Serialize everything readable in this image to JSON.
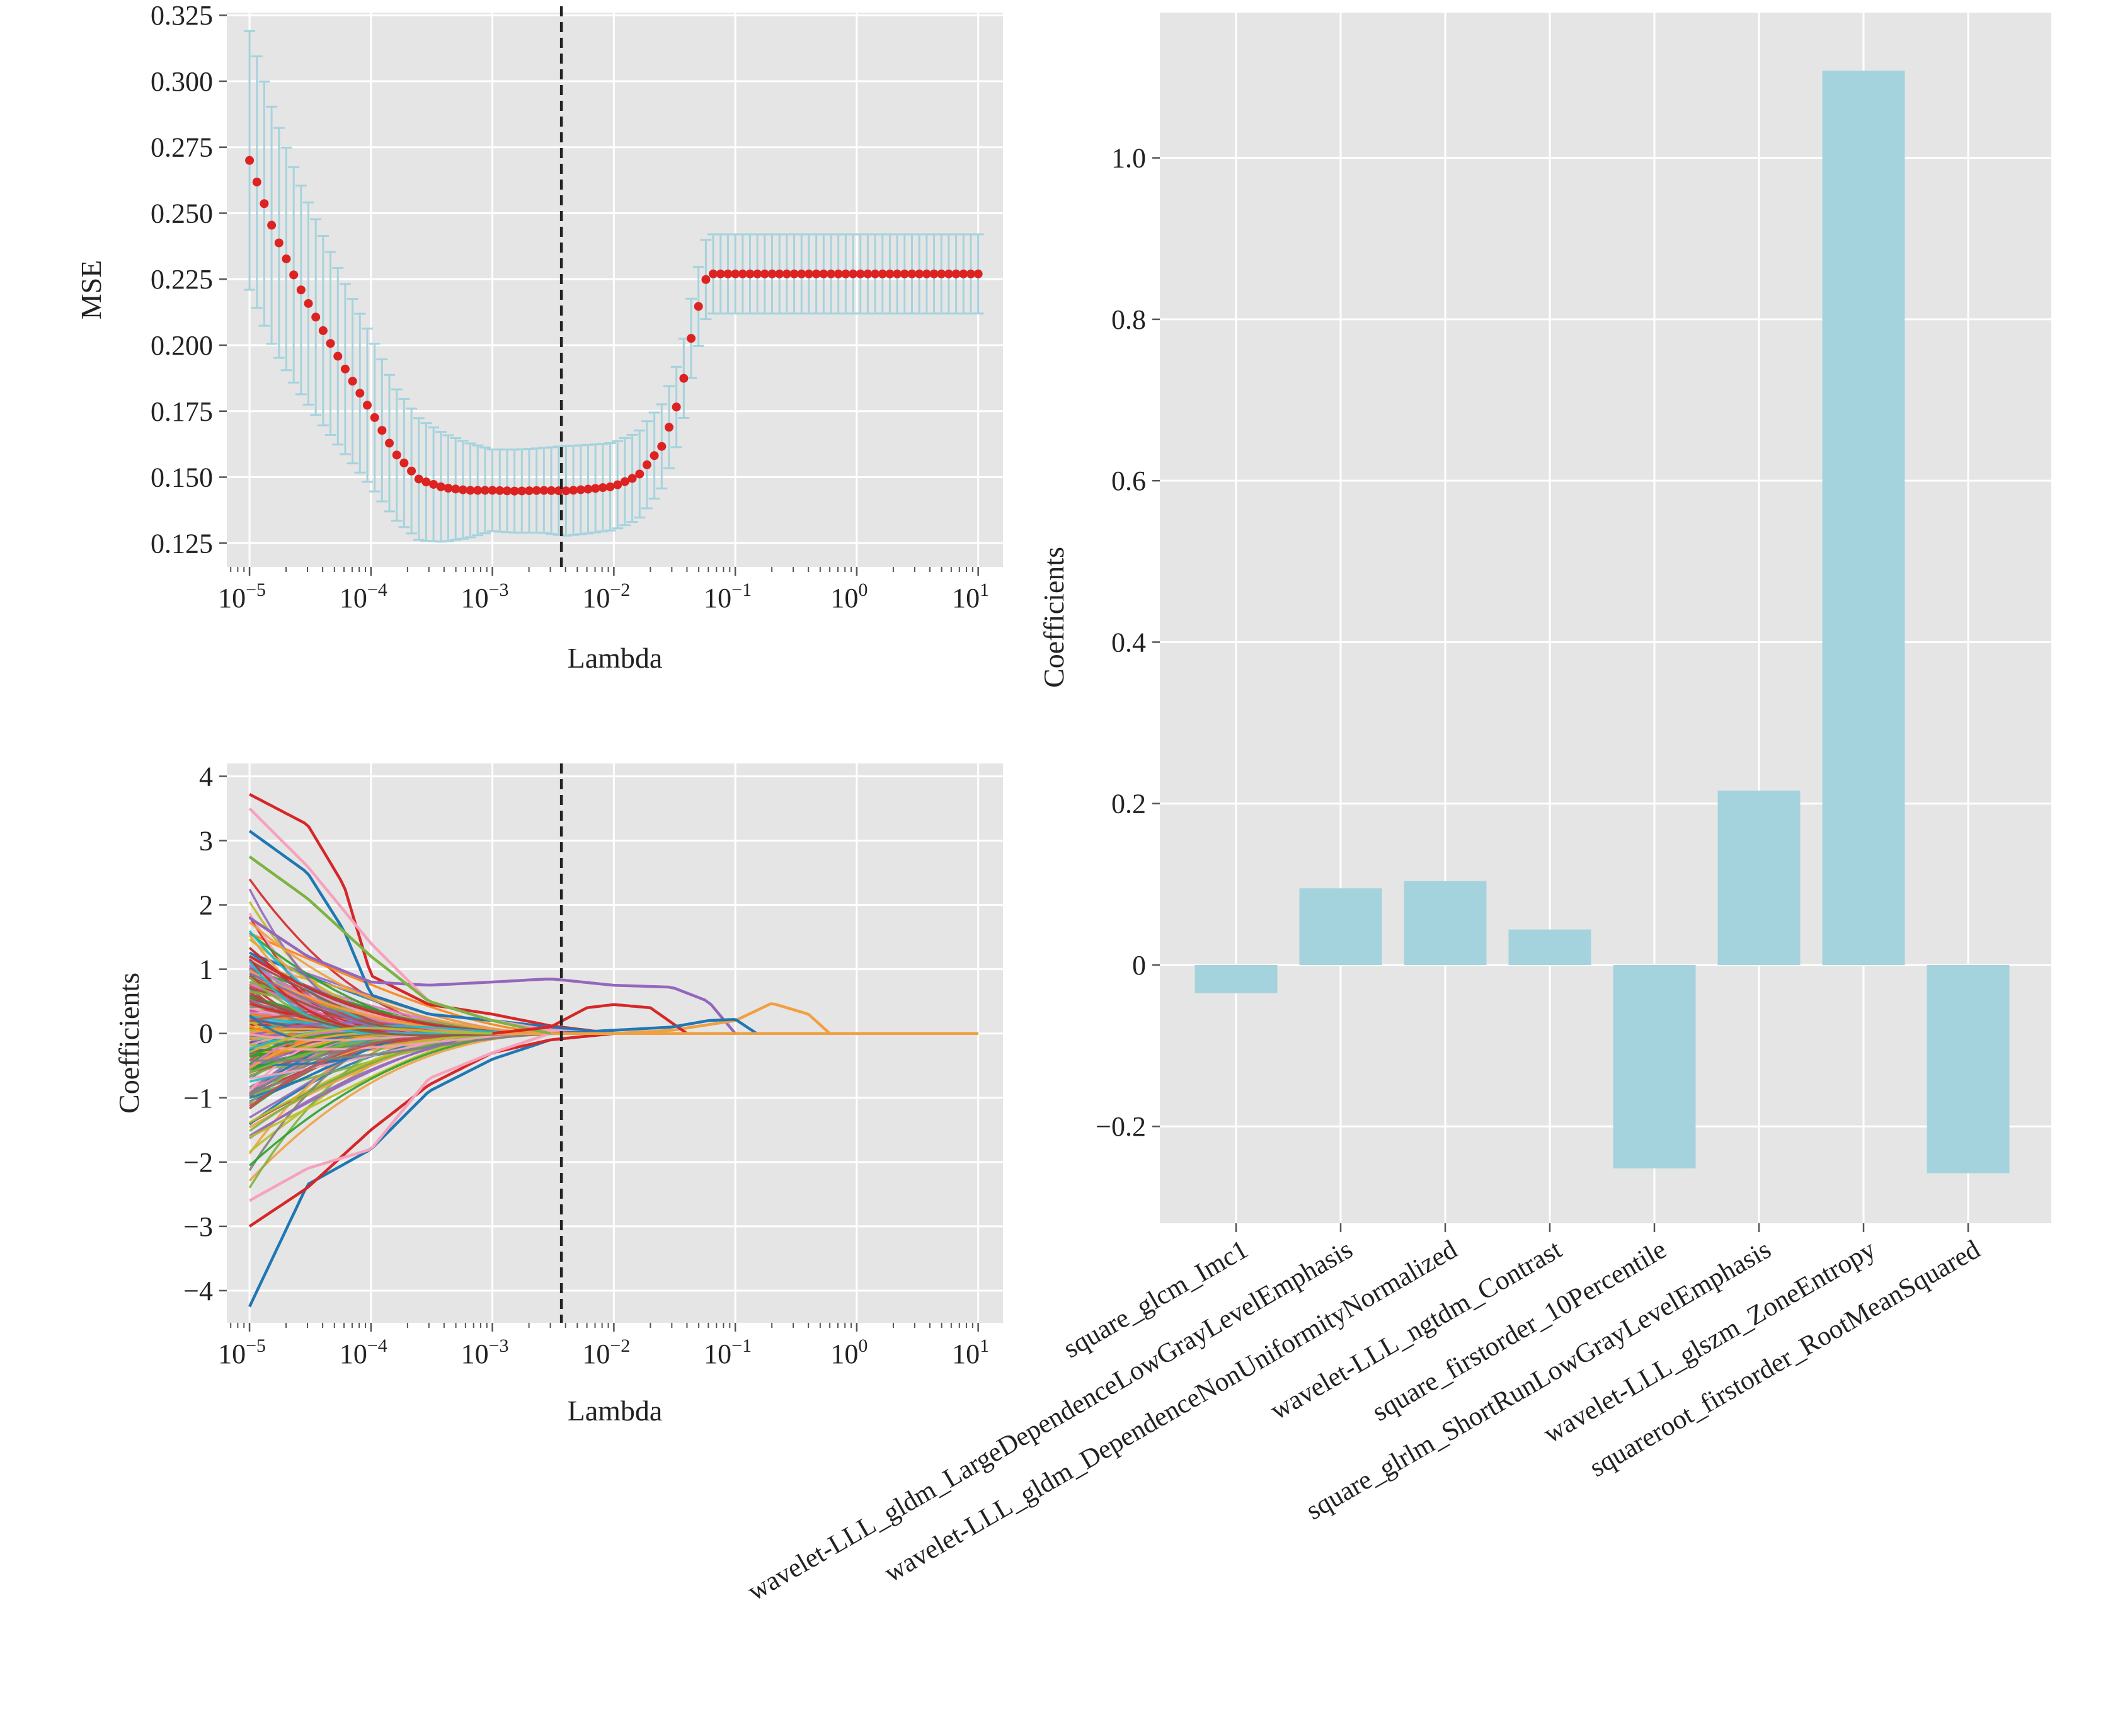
{
  "chart_data": [
    {
      "panel": "lasso-cv-mse",
      "type": "scatter",
      "xlabel": "Lambda",
      "ylabel": "MSE",
      "xscale": "log",
      "xlim": [
        6.5e-06,
        16
      ],
      "ylim": [
        0.116,
        0.326
      ],
      "grid": true,
      "xticks": [
        1e-05,
        0.0001,
        0.001,
        0.01,
        0.1,
        1,
        10
      ],
      "xtick_bases": [
        "10",
        "10",
        "10",
        "10",
        "10",
        "10",
        "10"
      ],
      "xtick_exponents": [
        "−5",
        "−4",
        "−3",
        "−2",
        "−1",
        "0",
        "1"
      ],
      "yticks": [
        0.125,
        0.15,
        0.175,
        0.2,
        0.225,
        0.25,
        0.275,
        0.3,
        0.325
      ],
      "ytick_labels": [
        "0.125",
        "0.150",
        "0.175",
        "0.200",
        "0.225",
        "0.250",
        "0.275",
        "0.300",
        "0.325"
      ],
      "selected_lambda": 0.0037,
      "mean_curve_knots": {
        "log10_lambda": [
          -5.0,
          -4.8,
          -4.6,
          -4.4,
          -4.2,
          -4.0,
          -3.8,
          -3.6,
          -3.4,
          -3.2,
          -3.0,
          -2.8,
          -2.6,
          -2.4,
          -2.2,
          -2.0,
          -1.8,
          -1.6,
          -1.45,
          -1.35,
          -1.25,
          -1.2,
          -1.1,
          -1.0
        ],
        "mse": [
          0.27,
          0.243,
          0.223,
          0.206,
          0.19,
          0.175,
          0.159,
          0.149,
          0.146,
          0.145,
          0.145,
          0.1447,
          0.145,
          0.1448,
          0.1455,
          0.1465,
          0.1505,
          0.162,
          0.181,
          0.206,
          0.2245,
          0.227,
          0.227,
          0.227
        ]
      },
      "error_curve_knots": {
        "log10_lambda": [
          -5.0,
          -4.6,
          -4.2,
          -3.8,
          -3.6,
          -3.2,
          -3.0,
          -2.6,
          -2.4,
          -2.0,
          -1.7,
          -1.45,
          -1.3,
          -1.2,
          -1.0
        ],
        "half_width": [
          0.049,
          0.04,
          0.032,
          0.025,
          0.023,
          0.018,
          0.0155,
          0.016,
          0.017,
          0.0165,
          0.0165,
          0.015,
          0.015,
          0.015,
          0.015
        ]
      },
      "colors": {
        "points": "#dd2222",
        "errorbars": "#a5d3dd",
        "cut_line": "#222222"
      }
    },
    {
      "panel": "lasso-coefficient-paths",
      "type": "line",
      "xlabel": "Lambda",
      "ylabel": "Coefficients",
      "xscale": "log",
      "xlim": [
        6.5e-06,
        16
      ],
      "ylim": [
        -4.5,
        4.2
      ],
      "grid": true,
      "xticks": [
        1e-05,
        0.0001,
        0.001,
        0.01,
        0.1,
        1,
        10
      ],
      "xtick_bases": [
        "10",
        "10",
        "10",
        "10",
        "10",
        "10",
        "10"
      ],
      "xtick_exponents": [
        "−5",
        "−4",
        "−3",
        "−2",
        "−1",
        "0",
        "1"
      ],
      "yticks": [
        -4,
        -3,
        -2,
        -1,
        0,
        1,
        2,
        3,
        4
      ],
      "ytick_labels": [
        "−4",
        "−3",
        "−2",
        "−1",
        "0",
        "1",
        "2",
        "3",
        "4"
      ],
      "selected_lambda": 0.0037,
      "num_paths": 220,
      "highlighted_paths": [
        {
          "x": [
            1e-05,
            3e-05,
            6e-05,
            0.0001,
            0.0003,
            0.001,
            0.003,
            0.01
          ],
          "y": [
            3.72,
            3.25,
            2.3,
            0.9,
            0.45,
            0.3,
            0.12,
            0.0
          ],
          "color": "#d62728"
        },
        {
          "x": [
            1e-05,
            3e-05,
            6e-05,
            0.0001,
            0.0003,
            0.001,
            0.003,
            0.01
          ],
          "y": [
            3.15,
            2.5,
            1.6,
            0.6,
            0.3,
            0.2,
            0.1,
            0.0
          ],
          "color": "#1f77b4"
        },
        {
          "x": [
            1e-05,
            3e-05,
            0.0001,
            0.0003,
            0.001,
            0.003,
            0.01,
            0.03,
            0.06,
            0.1
          ],
          "y": [
            1.8,
            1.2,
            0.8,
            0.75,
            0.8,
            0.85,
            0.75,
            0.72,
            0.5,
            0.0
          ],
          "color": "#9467bd"
        },
        {
          "x": [
            0.001,
            0.003,
            0.01,
            0.03,
            0.1,
            0.2,
            0.4,
            0.6
          ],
          "y": [
            0.0,
            0.0,
            0.0,
            0.05,
            0.2,
            0.47,
            0.3,
            0.0
          ],
          "color": "#f0a040"
        },
        {
          "x": [
            1e-05,
            3e-05,
            0.0001,
            0.0003,
            0.001,
            0.003,
            0.01
          ],
          "y": [
            -4.25,
            -2.35,
            -1.8,
            -0.9,
            -0.4,
            -0.1,
            0.0
          ],
          "color": "#1f77b4"
        },
        {
          "x": [
            1e-05,
            3e-05,
            0.0001,
            0.0003,
            0.001,
            0.003,
            0.01
          ],
          "y": [
            -3.0,
            -2.4,
            -1.5,
            -0.8,
            -0.3,
            -0.1,
            0.0
          ],
          "color": "#d62728"
        },
        {
          "x": [
            1e-05,
            3e-05,
            0.0001,
            0.0003,
            0.001,
            0.003,
            0.01
          ],
          "y": [
            -2.6,
            -2.1,
            -1.8,
            -0.7,
            -0.3,
            0.0,
            0.0
          ],
          "color": "#f7a1bd"
        },
        {
          "x": [
            1e-05,
            3e-05,
            0.0001,
            0.0003,
            0.001,
            0.003,
            0.01
          ],
          "y": [
            3.5,
            2.6,
            1.4,
            0.5,
            0.2,
            0.05,
            0.0
          ],
          "color": "#f7a1bd"
        },
        {
          "x": [
            1e-05,
            3e-05,
            0.0001,
            0.0003,
            0.001,
            0.003,
            0.01
          ],
          "y": [
            2.75,
            2.1,
            1.2,
            0.5,
            0.2,
            0.0,
            0.0
          ],
          "color": "#7cb342"
        },
        {
          "x": [
            0.001,
            0.003,
            0.006,
            0.01,
            0.02,
            0.04
          ],
          "y": [
            0.0,
            0.1,
            0.4,
            0.45,
            0.4,
            0.0
          ],
          "color": "#d62728"
        },
        {
          "x": [
            0.003,
            0.01,
            0.03,
            0.06,
            0.1,
            0.15
          ],
          "y": [
            0.0,
            0.05,
            0.1,
            0.2,
            0.22,
            0.0
          ],
          "color": "#1f77b4"
        }
      ],
      "palette": [
        "#1f77b4",
        "#d62728",
        "#2ca02c",
        "#9467bd",
        "#f0a040",
        "#f7a1bd",
        "#17becf",
        "#7f7f7f",
        "#8c564b",
        "#bcbd22",
        "#e377c2",
        "#ff7f0e",
        "#7cb342",
        "#c44e52"
      ]
    },
    {
      "panel": "selected-feature-coefficients",
      "type": "bar",
      "ylabel": "Coefficients",
      "ylim": [
        -0.32,
        1.18
      ],
      "grid": true,
      "yticks": [
        -0.2,
        0,
        0.2,
        0.4,
        0.6,
        0.8,
        1.0
      ],
      "ytick_labels": [
        "−0.2",
        "0",
        "0.2",
        "0.4",
        "0.6",
        "0.8",
        "1.0"
      ],
      "categories": [
        "square_glcm_Imc1",
        "wavelet-LLL_gldm_LargeDependenceLowGrayLevelEmphasis",
        "wavelet-LLL_gldm_DependenceNonUniformityNormalized",
        "wavelet-LLL_ngtdm_Contrast",
        "square_firstorder_10Percentile",
        "square_glrlm_ShortRunLowGrayLevelEmphasis",
        "wavelet-LLL_glszm_ZoneEntropy",
        "squareroot_firstorder_RootMeanSquared"
      ],
      "values": [
        -0.035,
        0.095,
        0.104,
        0.044,
        -0.252,
        0.216,
        1.108,
        -0.258
      ],
      "colors": {
        "bars": "#a5d3dd"
      }
    }
  ]
}
